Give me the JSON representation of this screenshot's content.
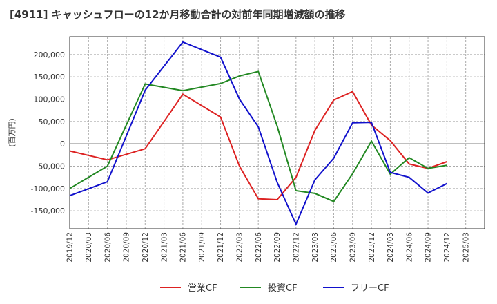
{
  "chart_data": {
    "type": "line",
    "title": "[4911]  キャッシュフローの12か月移動合計の対前年同期増減額の推移",
    "ylabel": "(百万円)",
    "xlabel": "",
    "ylim": [
      -190000,
      240000
    ],
    "yticks": [
      200000,
      150000,
      100000,
      50000,
      0,
      -50000,
      -100000,
      -150000
    ],
    "ytick_labels": [
      "200,000",
      "150,000",
      "100,000",
      "50,000",
      "0",
      "-50,000",
      "-100,000",
      "-150,000"
    ],
    "categories": [
      "2019/12",
      "2020/03",
      "2020/06",
      "2020/09",
      "2020/12",
      "2021/03",
      "2021/06",
      "2021/09",
      "2021/12",
      "2022/03",
      "2022/06",
      "2022/09",
      "2022/12",
      "2023/03",
      "2023/06",
      "2023/09",
      "2023/12",
      "2024/03",
      "2024/06",
      "2024/09",
      "2024/12",
      "2025/03"
    ],
    "grid": true,
    "legend_position": "bottom",
    "series": [
      {
        "name": "営業CF",
        "color": "#dd2222",
        "values": [
          -16000,
          null,
          -36000,
          null,
          -11000,
          null,
          111000,
          null,
          60000,
          -50000,
          -123000,
          -125000,
          -75000,
          30000,
          98000,
          117000,
          42000,
          7000,
          -45000,
          -55000,
          -40000,
          null
        ]
      },
      {
        "name": "投資CF",
        "color": "#228822",
        "values": [
          -100000,
          null,
          -50000,
          null,
          134000,
          null,
          119000,
          null,
          135000,
          152000,
          162000,
          40000,
          -105000,
          -111000,
          -129000,
          -67000,
          6000,
          -68000,
          -31000,
          -55000,
          -48000,
          null
        ]
      },
      {
        "name": "フリーCF",
        "color": "#1111cc",
        "values": [
          -116000,
          null,
          -85000,
          null,
          120000,
          null,
          228000,
          null,
          194000,
          100000,
          38000,
          -86000,
          -180000,
          -81000,
          -32000,
          47000,
          48000,
          -64000,
          -75000,
          -110000,
          -89000,
          null
        ]
      }
    ]
  }
}
